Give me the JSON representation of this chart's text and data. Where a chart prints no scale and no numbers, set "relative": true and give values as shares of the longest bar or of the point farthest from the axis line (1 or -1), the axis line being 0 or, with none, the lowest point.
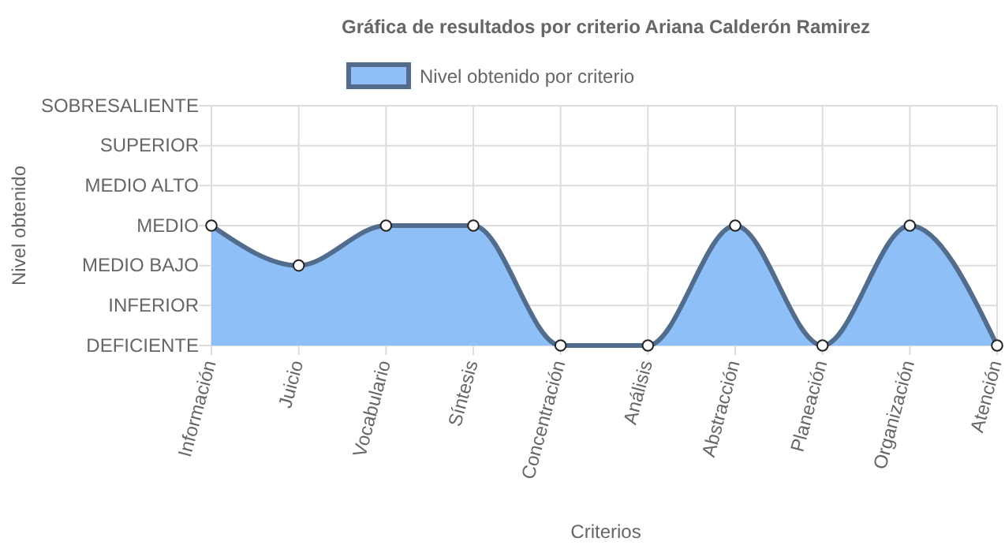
{
  "chart_data": {
    "type": "area",
    "title": "Gráfica de resultados por criterio Ariana Calderón Ramirez",
    "xlabel": "Criterios",
    "annotations": [
      "Nivel obtenido"
    ],
    "categories": [
      "Información",
      "Juicio",
      "Vocabulario",
      "Síntesis",
      "Concentración",
      "Análisis",
      "Abstracción",
      "Planeación",
      "Organización",
      "Atención"
    ],
    "y_categories": [
      "SOBRESALIENTE",
      "SUPERIOR",
      "MEDIO ALTO",
      "MEDIO",
      "MEDIO BAJO",
      "INFERIOR",
      "DEFICIENTE"
    ],
    "series": [
      {
        "name": "Nivel obtenido por criterio",
        "color": "#8fbff7",
        "values": [
          1,
          0.667,
          1,
          1,
          0,
          0,
          1,
          0,
          1,
          0
        ]
      }
    ],
    "relative": true,
    "grid": true,
    "legend": "top",
    "marker": "circle",
    "line_style": "solid"
  }
}
